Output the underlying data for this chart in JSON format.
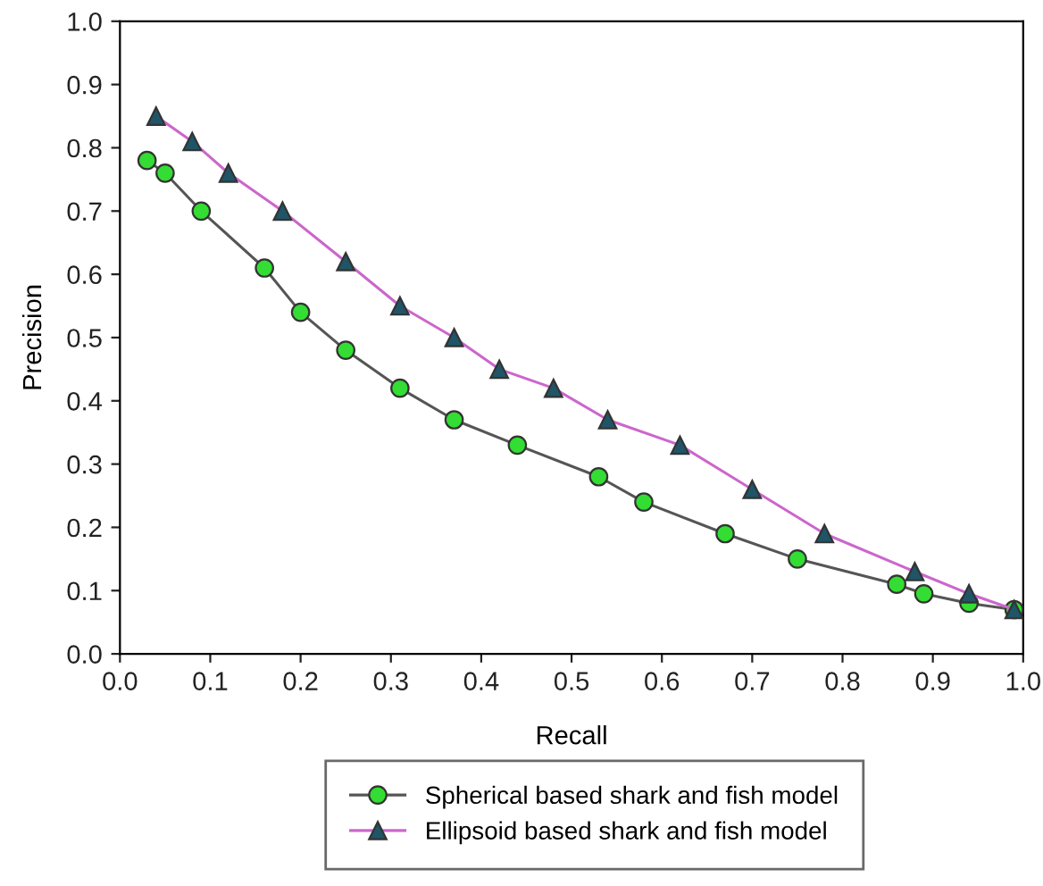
{
  "chart_data": {
    "type": "line",
    "xlabel": "Recall",
    "ylabel": "Precision",
    "xlim": [
      0.0,
      1.0
    ],
    "xticks": [
      {
        "value": 0,
        "label": "0.0"
      },
      0.1,
      0.2,
      0.3,
      0.4,
      0.5,
      0.6,
      0.7,
      0.8,
      0.9,
      {
        "value": 1,
        "label": "1.0"
      }
    ],
    "ylim": [
      0.0,
      1.0
    ],
    "yticks": [
      {
        "value": 0,
        "label": "0.0"
      },
      0.1,
      0.2,
      0.3,
      0.4,
      0.5,
      0.6,
      0.7,
      0.8,
      0.9,
      {
        "value": 1,
        "label": "1.0"
      }
    ],
    "grid": false,
    "legend": "bottom",
    "series": [
      {
        "name": "Spherical based shark and fish model",
        "color": "#33dd33",
        "marker": "circle",
        "x": [
          0.03,
          0.05,
          0.09,
          0.16,
          0.2,
          0.25,
          0.31,
          0.37,
          0.44,
          0.53,
          0.58,
          0.67,
          0.75,
          0.86,
          0.89,
          0.94,
          0.99
        ],
        "values": [
          0.78,
          0.76,
          0.7,
          0.61,
          0.54,
          0.48,
          0.42,
          0.37,
          0.33,
          0.28,
          0.24,
          0.19,
          0.15,
          0.11,
          0.095,
          0.08,
          0.07
        ]
      },
      {
        "name": "Ellipsoid based shark and fish model",
        "color": "#1f5566",
        "marker": "triangle",
        "x": [
          0.04,
          0.08,
          0.12,
          0.18,
          0.25,
          0.31,
          0.37,
          0.42,
          0.48,
          0.54,
          0.62,
          0.7,
          0.78,
          0.88,
          0.94,
          0.99
        ],
        "values": [
          0.85,
          0.81,
          0.76,
          0.7,
          0.62,
          0.55,
          0.5,
          0.45,
          0.42,
          0.37,
          0.33,
          0.26,
          0.19,
          0.13,
          0.095,
          0.07
        ]
      }
    ]
  }
}
